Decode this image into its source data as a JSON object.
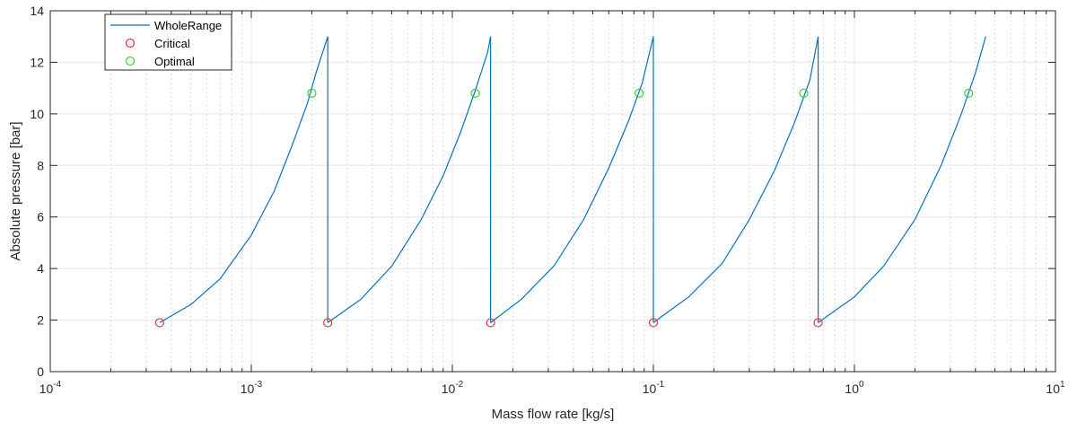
{
  "chart_data": {
    "type": "line",
    "xscale": "log",
    "xlabel": "Mass flow rate [kg/s]",
    "ylabel": "Absolute pressure [bar]",
    "xlim": [
      0.0001,
      10
    ],
    "ylim": [
      0,
      14
    ],
    "x_tick_labels": [
      {
        "value": 0.0001,
        "base": "10",
        "exp": "-4"
      },
      {
        "value": 0.001,
        "base": "10",
        "exp": "-3"
      },
      {
        "value": 0.01,
        "base": "10",
        "exp": "-2"
      },
      {
        "value": 0.1,
        "base": "10",
        "exp": "-1"
      },
      {
        "value": 1,
        "base": "10",
        "exp": "0"
      },
      {
        "value": 10,
        "base": "10",
        "exp": "1"
      }
    ],
    "y_ticks": [
      0,
      2,
      4,
      6,
      8,
      10,
      12,
      14
    ],
    "grid": true,
    "legend_placement": "top-left",
    "legend": [
      {
        "label": "WholeRange",
        "style": "line",
        "color": "#0072BD"
      },
      {
        "label": "Critical",
        "style": "circle",
        "color": "#E8303A"
      },
      {
        "label": "Optimal",
        "style": "circle",
        "color": "#33D633"
      }
    ],
    "series": [
      {
        "name": "WholeRange",
        "color": "#0072BD",
        "segments": [
          {
            "x": [
              0.00035,
              0.0005,
              0.0007,
              0.001,
              0.0013,
              0.0016,
              0.0019,
              0.0021,
              0.0024,
              0.0024
            ],
            "y": [
              1.9,
              2.6,
              3.6,
              5.3,
              7.0,
              8.8,
              10.4,
              11.6,
              13.0,
              1.9
            ]
          },
          {
            "x": [
              0.0024,
              0.0035,
              0.005,
              0.007,
              0.009,
              0.011,
              0.013,
              0.015,
              0.0155,
              0.0155
            ],
            "y": [
              1.9,
              2.8,
              4.1,
              5.9,
              7.6,
              9.3,
              10.9,
              12.4,
              13.0,
              1.9
            ]
          },
          {
            "x": [
              0.0155,
              0.022,
              0.032,
              0.045,
              0.06,
              0.075,
              0.088,
              0.1,
              0.1
            ],
            "y": [
              1.9,
              2.8,
              4.1,
              5.9,
              7.9,
              9.7,
              11.2,
              13.0,
              1.9
            ]
          },
          {
            "x": [
              0.1,
              0.15,
              0.22,
              0.3,
              0.4,
              0.5,
              0.6,
              0.66,
              0.66
            ],
            "y": [
              1.9,
              2.9,
              4.2,
              5.9,
              7.8,
              9.6,
              11.3,
              13.0,
              1.9
            ]
          },
          {
            "x": [
              0.66,
              1.0,
              1.4,
              2.0,
              2.7,
              3.4,
              4.0,
              4.5
            ],
            "y": [
              1.9,
              2.9,
              4.1,
              5.9,
              8.0,
              10.0,
              11.6,
              13.0
            ]
          }
        ]
      },
      {
        "name": "Critical",
        "color": "#E8303A",
        "x": [
          0.00035,
          0.0024,
          0.0155,
          0.1,
          0.66
        ],
        "y": [
          1.9,
          1.9,
          1.9,
          1.9,
          1.9
        ]
      },
      {
        "name": "Optimal",
        "color": "#33D633",
        "x": [
          0.002,
          0.013,
          0.085,
          0.56,
          3.7
        ],
        "y": [
          10.8,
          10.8,
          10.8,
          10.8,
          10.8
        ]
      }
    ]
  }
}
